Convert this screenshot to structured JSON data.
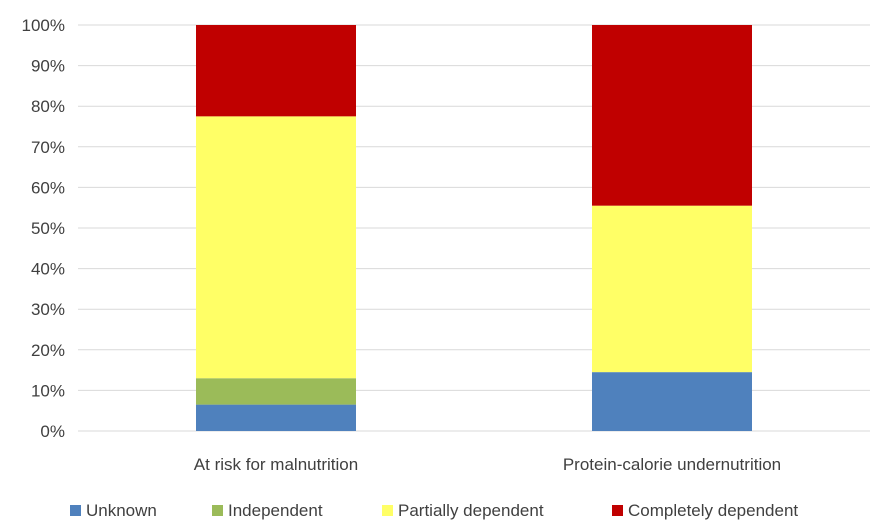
{
  "chart_data": {
    "type": "bar",
    "stacked": true,
    "percent": true,
    "categories": [
      "At risk for malnutrition",
      "Protein-calorie undernutrition"
    ],
    "series": [
      {
        "name": "Unknown",
        "color": "#4F81BD",
        "values": [
          6.5,
          14.5
        ]
      },
      {
        "name": "Independent",
        "color": "#9BBB59",
        "values": [
          6.5,
          0
        ]
      },
      {
        "name": "Partially dependent",
        "color": "#FFFF66",
        "values": [
          64.5,
          41
        ]
      },
      {
        "name": "Completely dependent",
        "color": "#C00000",
        "values": [
          22.5,
          44.5
        ]
      }
    ],
    "yticks": [
      "0%",
      "10%",
      "20%",
      "30%",
      "40%",
      "50%",
      "60%",
      "70%",
      "80%",
      "90%",
      "100%"
    ],
    "ylim": [
      0,
      100
    ],
    "title": "",
    "xlabel": "",
    "ylabel": "",
    "grid": true,
    "legend_position": "bottom"
  }
}
